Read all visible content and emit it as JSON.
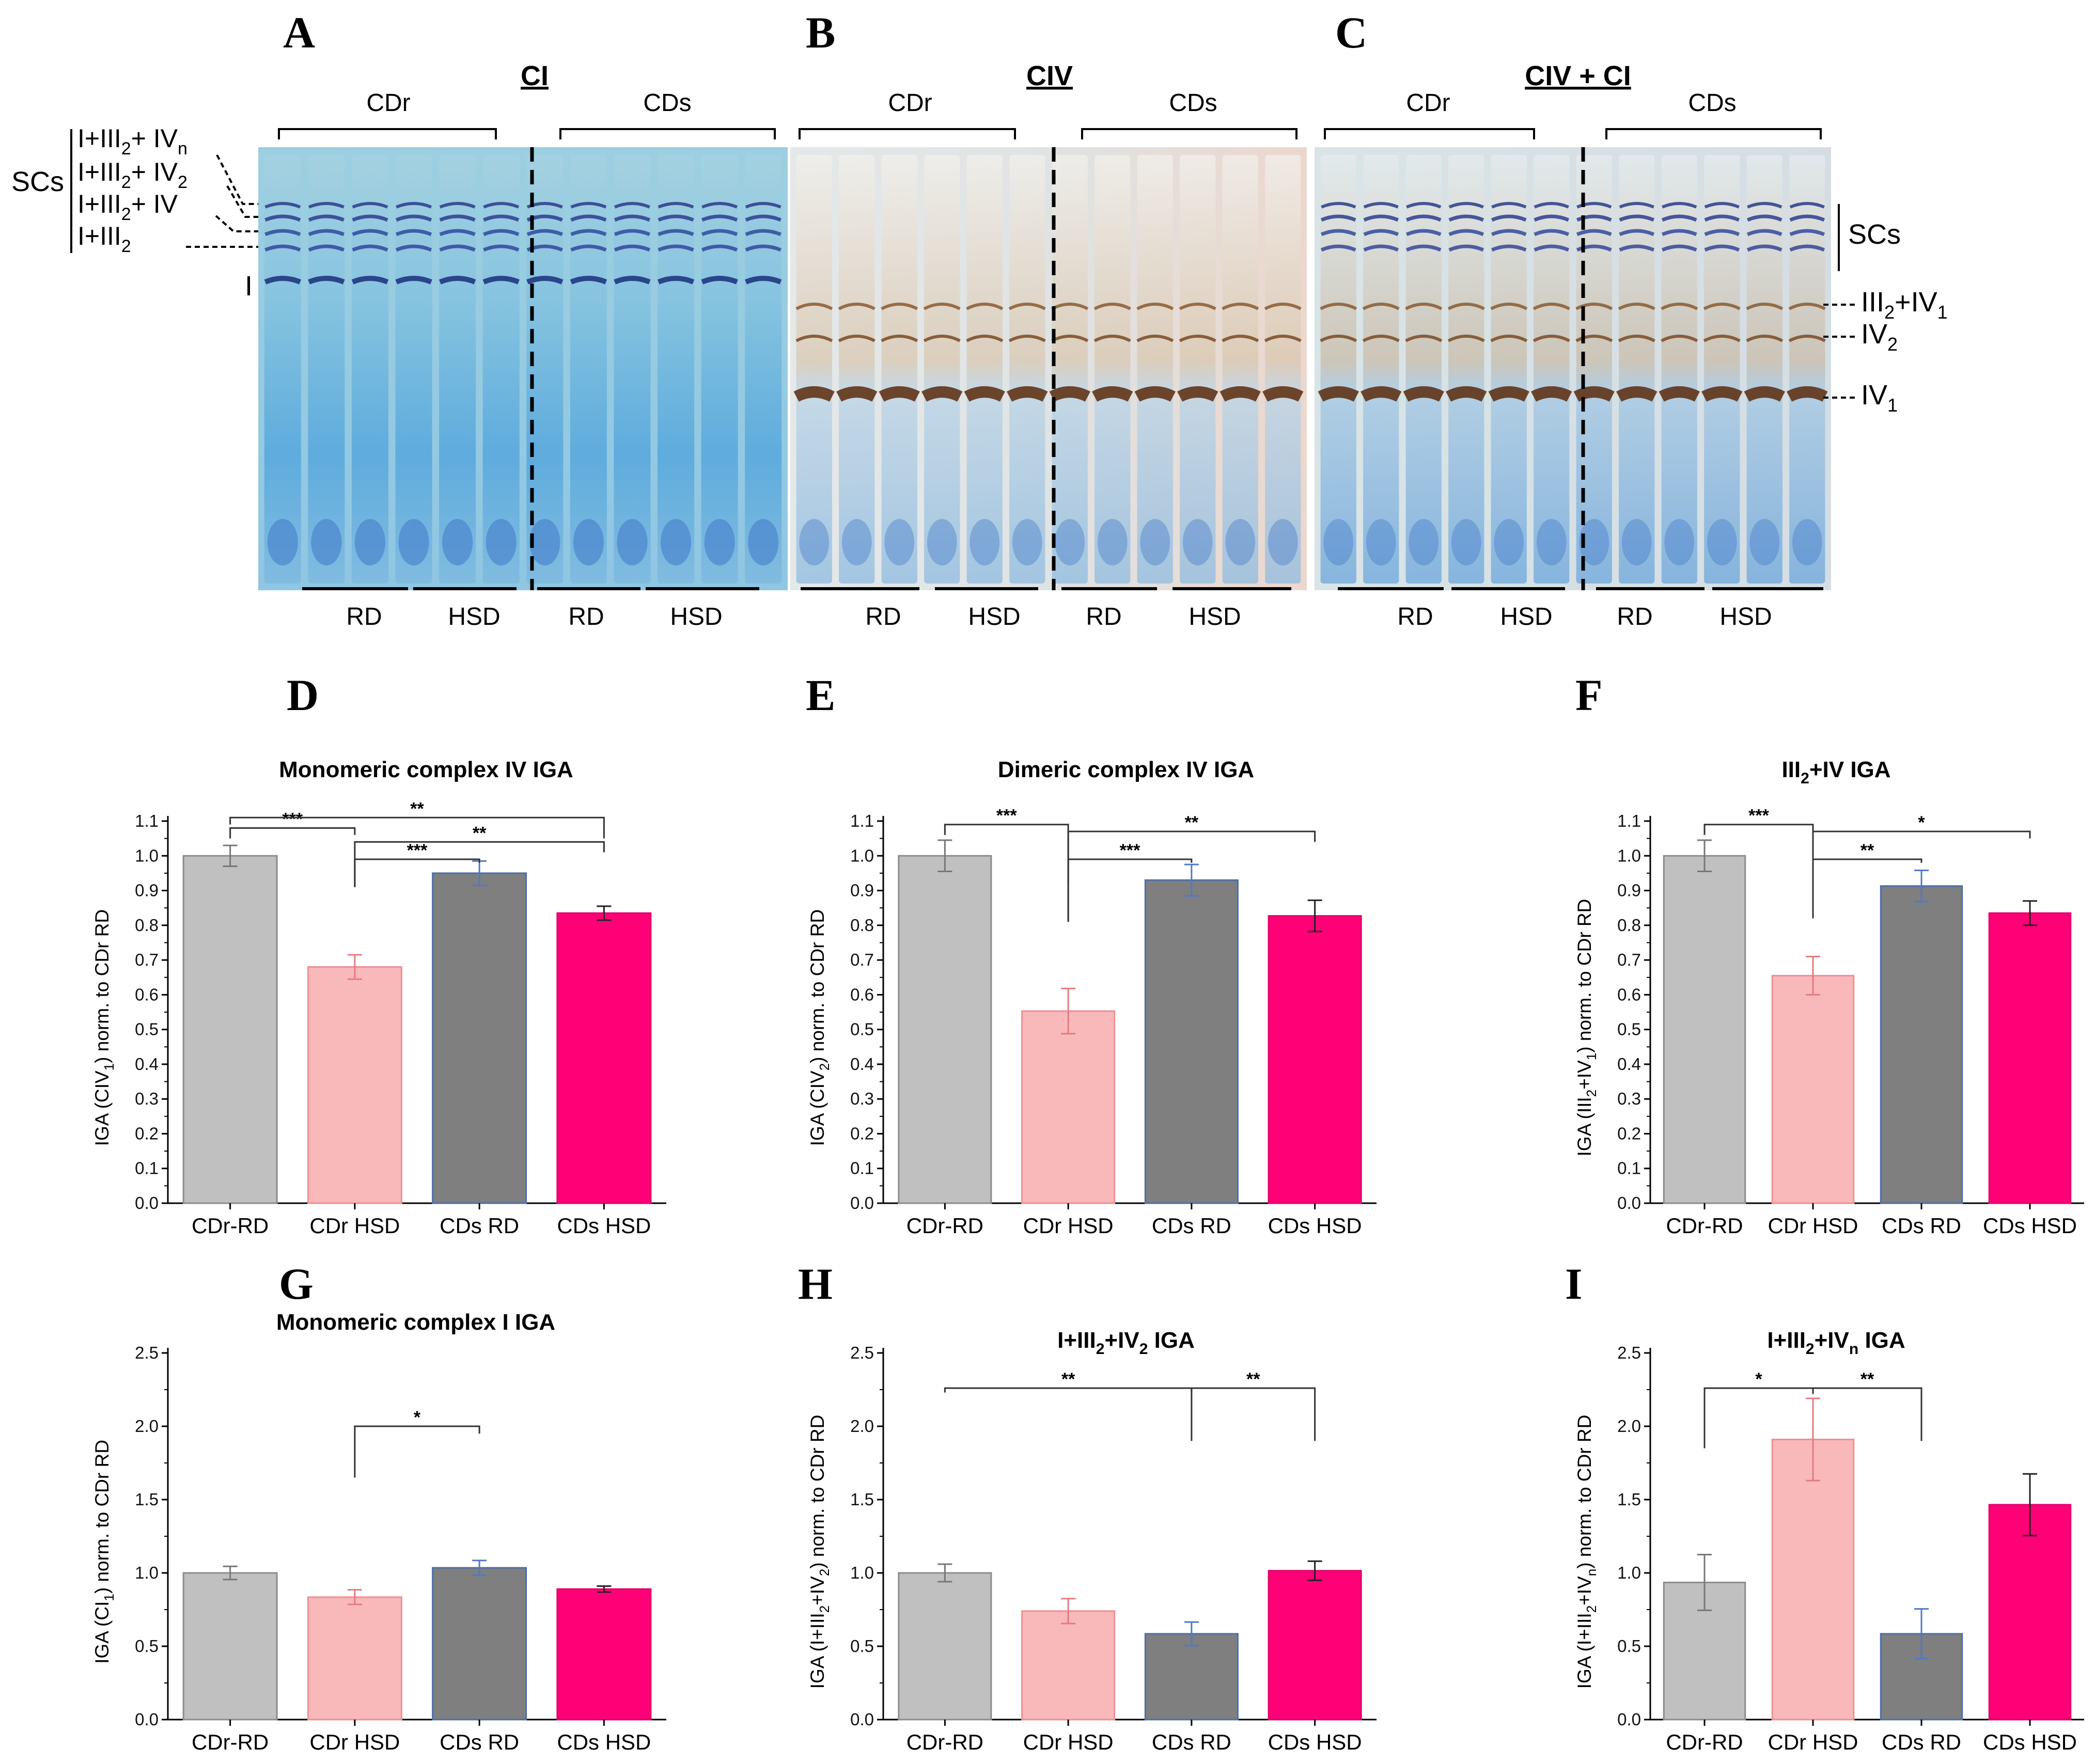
{
  "figure": {
    "panel_letters": [
      "A",
      "B",
      "C",
      "D",
      "E",
      "F",
      "G",
      "H",
      "I"
    ],
    "gels": [
      {
        "letter": "A",
        "title": "CI",
        "group_left": "CDr",
        "group_right": "CDs",
        "diet_labels": [
          "RD",
          "HSD",
          "RD",
          "HSD"
        ]
      },
      {
        "letter": "B",
        "title": "CIV",
        "group_left": "CDr",
        "group_right": "CDs",
        "diet_labels": [
          "RD",
          "HSD",
          "RD",
          "HSD"
        ]
      },
      {
        "letter": "C",
        "title": "CIV + CI",
        "group_left": "CDr",
        "group_right": "CDs",
        "diet_labels": [
          "RD",
          "HSD",
          "RD",
          "HSD"
        ]
      }
    ],
    "left_band_labels": {
      "scs": "SCs",
      "bands": [
        {
          "main": "I+III",
          "sub": "2",
          "tail": "+ IV",
          "tailsub": "n"
        },
        {
          "main": "I+III",
          "sub": "2",
          "tail": "+ IV",
          "tailsub": "2"
        },
        {
          "main": "I+III",
          "sub": "2",
          "tail": "+ IV",
          "tailsub": ""
        },
        {
          "main": "I+III",
          "sub": "2",
          "tail": "",
          "tailsub": ""
        }
      ],
      "complex_I": "I"
    },
    "right_band_labels": {
      "scs": "SCs",
      "bands": [
        {
          "a": "III",
          "asub": "2",
          "b": "+IV",
          "bsub": "1"
        },
        {
          "a": "IV",
          "asub": "2",
          "b": "",
          "bsub": ""
        },
        {
          "a": "IV",
          "asub": "1",
          "b": "",
          "bsub": ""
        }
      ]
    }
  },
  "colors": {
    "cdr_rd": "#c0c0c0",
    "cdr_hsd": "#f9b9bb",
    "cds_rd": "#7f7f7f",
    "cds_hsd": "#ff0077"
  },
  "chart_data": [
    {
      "letter": "D",
      "type": "bar",
      "title": "Monomeric complex IV IGA",
      "ylabel": "IGA (CIV1) norm. to CDr RD",
      "ylabel_parts": [
        {
          "t": "IGA (CIV"
        },
        {
          "t": "1",
          "sub": true
        },
        {
          "t": ") norm. to CDr RD"
        }
      ],
      "categories": [
        "CDr-RD",
        "CDr HSD",
        "CDs RD",
        "CDs HSD"
      ],
      "values": [
        1.0,
        0.68,
        0.95,
        0.835
      ],
      "errors": [
        0.03,
        0.035,
        0.035,
        0.02
      ],
      "ylim": [
        0,
        1.1
      ],
      "yticks": [
        0.0,
        0.1,
        0.2,
        0.3,
        0.4,
        0.5,
        0.6,
        0.7,
        0.8,
        0.9,
        1.0,
        1.1
      ],
      "significance": [
        {
          "from": 0,
          "to": 1,
          "label": "***",
          "y": 1.08,
          "left_drop": 1.05,
          "right_drop": 1.06
        },
        {
          "from": 0,
          "to": 3,
          "label": "**",
          "y": 1.11,
          "left_drop": 1.09,
          "right_drop": 1.05
        },
        {
          "from": 1,
          "to": 3,
          "label": "**",
          "y": 1.04,
          "left_drop": 0.91,
          "right_drop": 1.01
        },
        {
          "from": 1,
          "to": 2,
          "label": "***",
          "y": 0.99,
          "left_drop": 0.91,
          "right_drop": 0.98
        }
      ]
    },
    {
      "letter": "E",
      "type": "bar",
      "title": "Dimeric complex IV IGA",
      "ylabel": "IGA (CIV2) norm. to CDr RD",
      "ylabel_parts": [
        {
          "t": "IGA (CIV"
        },
        {
          "t": "2",
          "sub": true
        },
        {
          "t": ") norm. to CDr RD"
        }
      ],
      "categories": [
        "CDr-RD",
        "CDr HSD",
        "CDs RD",
        "CDs HSD"
      ],
      "values": [
        1.0,
        0.553,
        0.93,
        0.827
      ],
      "errors": [
        0.045,
        0.065,
        0.045,
        0.045
      ],
      "ylim": [
        0,
        1.1
      ],
      "yticks": [
        0.0,
        0.1,
        0.2,
        0.3,
        0.4,
        0.5,
        0.6,
        0.7,
        0.8,
        0.9,
        1.0,
        1.1
      ],
      "significance": [
        {
          "from": 0,
          "to": 1,
          "label": "***",
          "y": 1.09,
          "left_drop": 1.06,
          "right_drop": 0.92
        },
        {
          "from": 1,
          "to": 3,
          "label": "**",
          "y": 1.07,
          "left_drop": 0.81,
          "right_drop": 1.04
        },
        {
          "from": 1,
          "to": 2,
          "label": "***",
          "y": 0.99,
          "left_drop": 0.81,
          "right_drop": 0.98
        }
      ]
    },
    {
      "letter": "F",
      "type": "bar",
      "title": "III2+IV IGA",
      "title_parts": [
        {
          "t": "III"
        },
        {
          "t": "2",
          "sub": true
        },
        {
          "t": "+IV IGA"
        }
      ],
      "ylabel": "IGA (III2+IV1) norm. to CDr RD",
      "ylabel_parts": [
        {
          "t": "IGA (III"
        },
        {
          "t": "2",
          "sub": true
        },
        {
          "t": "+IV"
        },
        {
          "t": "1",
          "sub": true
        },
        {
          "t": ") norm. to CDr RD"
        }
      ],
      "categories": [
        "CDr-RD",
        "CDr HSD",
        "CDs RD",
        "CDs HSD"
      ],
      "values": [
        1.0,
        0.655,
        0.913,
        0.835
      ],
      "errors": [
        0.045,
        0.055,
        0.045,
        0.035
      ],
      "ylim": [
        0,
        1.1
      ],
      "yticks": [
        0.0,
        0.1,
        0.2,
        0.3,
        0.4,
        0.5,
        0.6,
        0.7,
        0.8,
        0.9,
        1.0,
        1.1
      ],
      "significance": [
        {
          "from": 0,
          "to": 1,
          "label": "***",
          "y": 1.09,
          "left_drop": 1.06,
          "right_drop": 1.04
        },
        {
          "from": 1,
          "to": 3,
          "label": "*",
          "y": 1.07,
          "left_drop": 0.82,
          "right_drop": 1.05
        },
        {
          "from": 1,
          "to": 2,
          "label": "**",
          "y": 0.99,
          "left_drop": 0.82,
          "right_drop": 0.98
        }
      ]
    },
    {
      "letter": "G",
      "type": "bar",
      "title": "Monomeric complex I IGA",
      "ylabel": "IGA (CI1) norm. to CDr RD",
      "ylabel_parts": [
        {
          "t": "IGA (CI"
        },
        {
          "t": "1",
          "sub": true
        },
        {
          "t": ") norm. to CDr RD"
        }
      ],
      "categories": [
        "CDr-RD",
        "CDr HSD",
        "CDs RD",
        "CDs HSD"
      ],
      "values": [
        1.0,
        0.835,
        1.035,
        0.89
      ],
      "errors": [
        0.045,
        0.05,
        0.05,
        0.02
      ],
      "ylim": [
        0,
        2.5
      ],
      "yticks": [
        0.0,
        0.5,
        1.0,
        1.5,
        2.0,
        2.5
      ],
      "significance": [
        {
          "from": 1,
          "to": 2,
          "label": "*",
          "y": 2.0,
          "left_drop": 1.65,
          "right_drop": 1.95
        }
      ]
    },
    {
      "letter": "H",
      "type": "bar",
      "title": "I+III2+IV2  IGA",
      "title_parts": [
        {
          "t": "I+III"
        },
        {
          "t": "2",
          "sub": true
        },
        {
          "t": "+IV"
        },
        {
          "t": "2",
          "sub": true
        },
        {
          "t": "  IGA"
        }
      ],
      "ylabel": "IGA (I+III2+IV2) norm. to CDr RD",
      "ylabel_parts": [
        {
          "t": "IGA (I+III"
        },
        {
          "t": "2",
          "sub": true
        },
        {
          "t": "+IV"
        },
        {
          "t": "2",
          "sub": true
        },
        {
          "t": ") norm. to CDr RD"
        }
      ],
      "categories": [
        "CDr-RD",
        "CDr HSD",
        "CDs RD",
        "CDs HSD"
      ],
      "values": [
        1.0,
        0.74,
        0.585,
        1.015
      ],
      "errors": [
        0.06,
        0.085,
        0.08,
        0.065
      ],
      "ylim": [
        0,
        2.5
      ],
      "yticks": [
        0.0,
        0.5,
        1.0,
        1.5,
        2.0,
        2.5
      ],
      "significance": [
        {
          "from": 0,
          "to": 2,
          "label": "**",
          "y": 2.26,
          "left_drop": 2.23,
          "right_drop": 1.9
        },
        {
          "from": 2,
          "to": 3,
          "label": "**",
          "y": 2.26,
          "left_drop": 2.23,
          "right_drop": 1.9
        }
      ]
    },
    {
      "letter": "I",
      "type": "bar",
      "title": "I+III2+IVn  IGA",
      "title_parts": [
        {
          "t": "I+III"
        },
        {
          "t": "2",
          "sub": true
        },
        {
          "t": "+IV"
        },
        {
          "t": "n",
          "sub": true
        },
        {
          "t": "  IGA"
        }
      ],
      "ylabel": "IGA (I+III2+IVn) norm. to CDr RD",
      "ylabel_parts": [
        {
          "t": "IGA (I+III"
        },
        {
          "t": "2",
          "sub": true
        },
        {
          "t": "+IV"
        },
        {
          "t": "n",
          "sub": true
        },
        {
          "t": ") norm. to CDr RD"
        }
      ],
      "categories": [
        "CDr-RD",
        "CDr HSD",
        "CDs RD",
        "CDs HSD"
      ],
      "values": [
        0.935,
        1.91,
        0.585,
        1.465
      ],
      "errors": [
        0.19,
        0.28,
        0.17,
        0.21
      ],
      "ylim": [
        0,
        2.5
      ],
      "yticks": [
        0.0,
        0.5,
        1.0,
        1.5,
        2.0,
        2.5
      ],
      "significance": [
        {
          "from": 0,
          "to": 1,
          "label": "*",
          "y": 2.26,
          "left_drop": 1.85,
          "right_drop": 2.22
        },
        {
          "from": 1,
          "to": 2,
          "label": "**",
          "y": 2.26,
          "left_drop": 2.22,
          "right_drop": 1.9
        }
      ]
    }
  ]
}
